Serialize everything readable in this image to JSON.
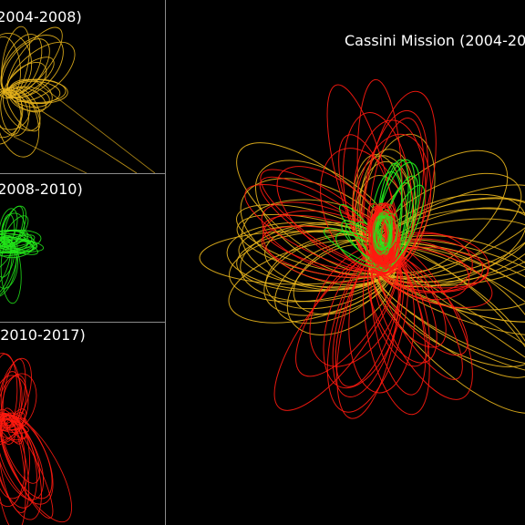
{
  "panels": {
    "p1": {
      "title": "(2004-2008)"
    },
    "p2": {
      "title": "(2008-2010)"
    },
    "p3": {
      "title": "(2010-2017)"
    },
    "main": {
      "title": "Cassini Mission (2004-20"
    }
  },
  "colors": {
    "background": "#000000",
    "phase1": "#e6b21c",
    "phase2": "#22e61a",
    "phase3": "#ff1a10",
    "divider": "#8a8a8a"
  }
}
